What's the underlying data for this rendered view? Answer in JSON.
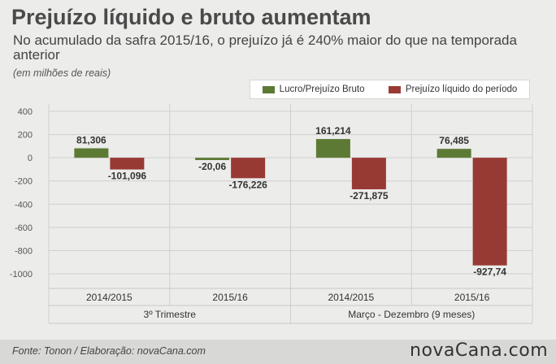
{
  "header": {
    "title": "Prejuízo líquido e bruto aumentam",
    "subtitle": "No acumulado da safra 2015/16, o prejuízo já é 240% maior do que na temporada anterior",
    "units": "(em milhões de reais)"
  },
  "footer": {
    "source": "Fonte: Tonon / Elaboração: novaCana.com",
    "logo": "novaCana.com"
  },
  "colors": {
    "bruto": "#5d7a35",
    "liquido": "#983a34",
    "grid": "#cfcfcf",
    "background": "#ececea"
  },
  "chart_data": {
    "type": "bar",
    "categories": [
      "2014/2015",
      "2015/16",
      "2014/2015",
      "2015/16"
    ],
    "groups": [
      {
        "label": "3º Trimestre",
        "categories": [
          "2014/2015",
          "2015/16"
        ]
      },
      {
        "label": "Março - Dezembro (9 meses)",
        "categories": [
          "2014/2015",
          "2015/16"
        ]
      }
    ],
    "series": [
      {
        "name": "Lucro/Prejuízo Bruto",
        "values": [
          81.306,
          -20.06,
          161.214,
          76.485
        ],
        "labels": [
          "81,306",
          "-20,06",
          "161,214",
          "76,485"
        ]
      },
      {
        "name": "Prejuízo líquido do período",
        "values": [
          -101.096,
          -176.226,
          -271.875,
          -927.74
        ],
        "labels": [
          "-101,096",
          "-176,226",
          "-271,875",
          "-927,74"
        ]
      }
    ],
    "yticks": [
      400,
      200,
      0,
      -200,
      -400,
      -600,
      -800,
      -1000
    ],
    "ylim": [
      -1000,
      400
    ],
    "grid": true,
    "legend_position": "top-right"
  }
}
